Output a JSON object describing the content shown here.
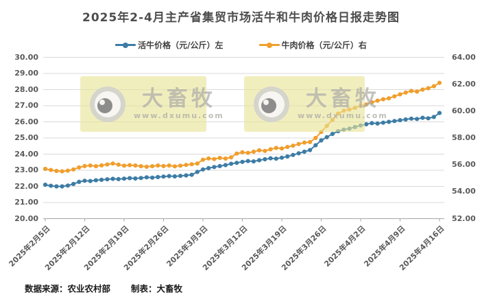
{
  "title": "2025年2-4月主产省集贸市场活牛和牛肉价格日报走势图",
  "legend": [
    {
      "label": "活牛价格（元/公斤）左",
      "color": "#3d7ca5",
      "series_key": "live-cattle"
    },
    {
      "label": "牛肉价格（元/公斤）右",
      "color": "#f09e2d",
      "series_key": "beef"
    }
  ],
  "watermark": {
    "brand": "大畜牧",
    "url": "www.dxumu.com"
  },
  "footer": {
    "source": "数据来源：农业农村部",
    "maker": "制表：大畜牧"
  },
  "colors": {
    "title": "#4d4d4d",
    "axis_text": "#595959",
    "gridline": "#d9d9d9",
    "axis_line": "#a6a6a6",
    "live_cattle": "#3d7ca5",
    "beef": "#f09e2d",
    "watermark_bg": "#f1eec1"
  },
  "chart_data": {
    "type": "line",
    "title": "2025年2-4月主产省集贸市场活牛和牛肉价格日报走势图",
    "grid": true,
    "legend_position": "top",
    "x_tick_labels": [
      "2025年2月5日",
      "2025年2月12日",
      "2025年2月19日",
      "2025年2月26日",
      "2025年3月5日",
      "2025年3月12日",
      "2025年3月19日",
      "2025年3月26日",
      "2025年4月2日",
      "2025年4月9日",
      "2025年4月16日"
    ],
    "x_tick_indices": [
      0,
      7,
      14,
      21,
      28,
      35,
      42,
      49,
      56,
      63,
      70
    ],
    "dates": [
      "2月5日",
      "2月6日",
      "2月7日",
      "2月8日",
      "2月9日",
      "2月10日",
      "2月11日",
      "2月12日",
      "2月13日",
      "2月14日",
      "2月15日",
      "2月16日",
      "2月17日",
      "2月18日",
      "2月19日",
      "2月20日",
      "2月21日",
      "2月22日",
      "2月23日",
      "2月24日",
      "2月25日",
      "2月26日",
      "2月27日",
      "2月28日",
      "3月1日",
      "3月2日",
      "3月3日",
      "3月4日",
      "3月5日",
      "3月6日",
      "3月7日",
      "3月8日",
      "3月9日",
      "3月10日",
      "3月11日",
      "3月12日",
      "3月13日",
      "3月14日",
      "3月15日",
      "3月16日",
      "3月17日",
      "3月18日",
      "3月19日",
      "3月20日",
      "3月21日",
      "3月22日",
      "3月23日",
      "3月24日",
      "3月25日",
      "3月26日",
      "3月27日",
      "3月28日",
      "3月29日",
      "3月30日",
      "3月31日",
      "4月1日",
      "4月2日",
      "4月3日",
      "4月4日",
      "4月5日",
      "4月6日",
      "4月7日",
      "4月8日",
      "4月9日",
      "4月10日",
      "4月11日",
      "4月12日",
      "4月13日",
      "4月14日",
      "4月15日",
      "4月16日"
    ],
    "left_axis": {
      "min": 20,
      "max": 30,
      "step": 1,
      "ticks": [
        "30.00",
        "29.00",
        "28.00",
        "27.00",
        "26.00",
        "25.00",
        "24.00",
        "23.00",
        "22.00",
        "21.00",
        "20.00"
      ]
    },
    "right_axis": {
      "min": 52,
      "max": 64,
      "step": 2,
      "ticks": [
        "64.00",
        "62.00",
        "60.00",
        "58.00",
        "56.00",
        "54.00",
        "52.00"
      ]
    },
    "series": [
      {
        "name": "活牛价格（元/公斤）左",
        "key": "live-cattle",
        "axis": "left",
        "color": "#3d7ca5",
        "values": [
          22.1,
          22.04,
          22.0,
          22.0,
          22.05,
          22.15,
          22.28,
          22.35,
          22.33,
          22.38,
          22.41,
          22.44,
          22.47,
          22.45,
          22.48,
          22.51,
          22.49,
          22.52,
          22.56,
          22.54,
          22.58,
          22.61,
          22.64,
          22.62,
          22.65,
          22.68,
          22.72,
          22.9,
          23.05,
          23.13,
          23.2,
          23.26,
          23.32,
          23.4,
          23.46,
          23.52,
          23.57,
          23.55,
          23.62,
          23.68,
          23.74,
          23.72,
          23.78,
          23.85,
          23.95,
          24.05,
          24.15,
          24.25,
          24.55,
          24.85,
          25.05,
          25.25,
          25.42,
          25.52,
          25.58,
          25.68,
          25.78,
          25.85,
          25.92,
          25.9,
          25.95,
          26.0,
          26.05,
          26.1,
          26.15,
          26.2,
          26.18,
          26.25,
          26.22,
          26.3,
          26.55
        ]
      },
      {
        "name": "牛肉价格（元/公斤）右",
        "key": "beef",
        "axis": "right",
        "color": "#f09e2d",
        "values": [
          55.7,
          55.62,
          55.55,
          55.52,
          55.57,
          55.66,
          55.81,
          55.91,
          55.95,
          55.9,
          55.96,
          56.03,
          56.1,
          56.02,
          55.94,
          55.98,
          55.95,
          55.9,
          55.86,
          55.9,
          55.95,
          55.91,
          55.95,
          55.89,
          55.94,
          56.0,
          56.05,
          56.1,
          56.38,
          56.48,
          56.43,
          56.52,
          56.47,
          56.56,
          56.84,
          56.94,
          56.89,
          56.98,
          57.08,
          57.04,
          57.16,
          57.26,
          57.22,
          57.33,
          57.43,
          57.55,
          57.66,
          57.7,
          58.0,
          58.45,
          58.9,
          59.35,
          59.81,
          60.03,
          60.12,
          60.24,
          60.39,
          60.49,
          60.65,
          60.78,
          60.88,
          60.95,
          61.1,
          61.25,
          61.38,
          61.5,
          61.45,
          61.6,
          61.7,
          61.85,
          62.1
        ]
      }
    ]
  }
}
